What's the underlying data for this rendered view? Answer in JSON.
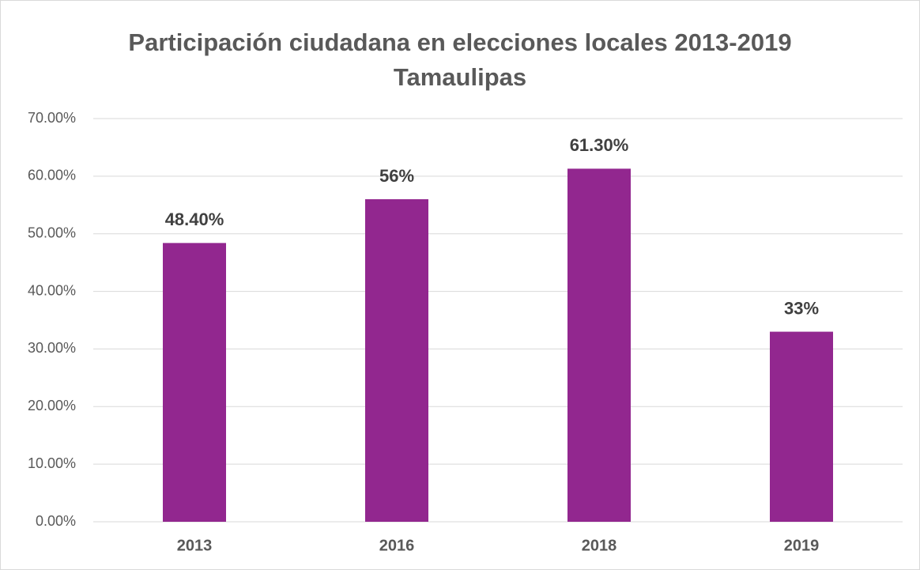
{
  "chart_data": {
    "type": "bar",
    "title": [
      "Participación ciudadana en elecciones locales 2013-2019",
      "Tamaulipas"
    ],
    "categories": [
      "2013",
      "2016",
      "2018",
      "2019"
    ],
    "values": [
      48.4,
      56,
      61.3,
      33
    ],
    "value_labels": [
      "48.40%",
      "56%",
      "61.30%",
      "33%"
    ],
    "color": "#92278f",
    "ylim": [
      0,
      70
    ],
    "yticks": [
      {
        "value": 0,
        "label": "0.00%"
      },
      {
        "value": 10,
        "label": "10.00%"
      },
      {
        "value": 20,
        "label": "20.00%"
      },
      {
        "value": 30,
        "label": "30.00%"
      },
      {
        "value": 40,
        "label": "40.00%"
      },
      {
        "value": 50,
        "label": "50.00%"
      },
      {
        "value": 60,
        "label": "60.00%"
      },
      {
        "value": 70,
        "label": "70.00%"
      }
    ],
    "grid": true
  }
}
